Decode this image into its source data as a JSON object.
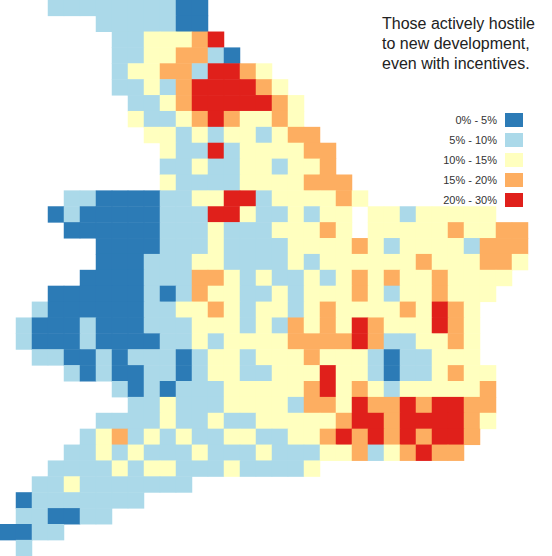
{
  "chart_data": {
    "type": "map",
    "title": "Those actively hostile\nto new development,\neven with incentives.",
    "tick_labels": false,
    "color_classes": [
      {
        "label": "0% - 5%",
        "min": 0,
        "max": 5,
        "color": "#2c7bb6"
      },
      {
        "label": "5% - 10%",
        "min": 5,
        "max": 10,
        "color": "#abd9e9"
      },
      {
        "label": "10% - 15%",
        "min": 10,
        "max": 15,
        "color": "#ffffbf"
      },
      {
        "label": "15% - 20%",
        "min": 15,
        "max": 20,
        "color": "#fdae61"
      },
      {
        "label": "20% - 30%",
        "min": 20,
        "max": 30,
        "color": "#e0201b"
      }
    ],
    "cells": [
      [
        null,
        null,
        null,
        8,
        8,
        8,
        8,
        8,
        8,
        8,
        8,
        3,
        3,
        null,
        null,
        null,
        null,
        null,
        null,
        null,
        null,
        null,
        null,
        null,
        null,
        null,
        null,
        null,
        null,
        null,
        null,
        null,
        null,
        null
      ],
      [
        null,
        null,
        null,
        null,
        null,
        null,
        8,
        8,
        8,
        8,
        8,
        3,
        3,
        null,
        null,
        null,
        null,
        null,
        null,
        null,
        null,
        null,
        null,
        null,
        null,
        null,
        null,
        null,
        null,
        null,
        null,
        null,
        null,
        null
      ],
      [
        null,
        null,
        null,
        null,
        null,
        null,
        null,
        8,
        8,
        13,
        13,
        13,
        18,
        25,
        null,
        null,
        null,
        null,
        null,
        null,
        null,
        null,
        null,
        null,
        null,
        null,
        null,
        null,
        null,
        null,
        null,
        null,
        null,
        null
      ],
      [
        null,
        null,
        null,
        null,
        null,
        null,
        null,
        8,
        8,
        13,
        13,
        18,
        18,
        8,
        3,
        null,
        null,
        null,
        null,
        null,
        null,
        null,
        null,
        null,
        null,
        null,
        null,
        null,
        null,
        null,
        null,
        null,
        null,
        null
      ],
      [
        null,
        null,
        null,
        null,
        null,
        null,
        null,
        8,
        13,
        13,
        18,
        18,
        8,
        25,
        25,
        18,
        13,
        null,
        null,
        null,
        null,
        null,
        null,
        null,
        null,
        null,
        null,
        null,
        null,
        null,
        null,
        null,
        null,
        null
      ],
      [
        null,
        null,
        null,
        null,
        null,
        null,
        null,
        8,
        8,
        13,
        8,
        18,
        25,
        25,
        25,
        25,
        18,
        13,
        null,
        null,
        null,
        null,
        null,
        null,
        null,
        null,
        null,
        null,
        null,
        null,
        null,
        null,
        null,
        null
      ],
      [
        null,
        null,
        null,
        null,
        null,
        null,
        null,
        null,
        8,
        8,
        13,
        18,
        25,
        25,
        25,
        25,
        25,
        18,
        13,
        null,
        null,
        null,
        null,
        null,
        null,
        null,
        null,
        null,
        null,
        null,
        null,
        null,
        null,
        null
      ],
      [
        null,
        null,
        null,
        null,
        null,
        null,
        null,
        null,
        13,
        8,
        8,
        13,
        18,
        25,
        18,
        13,
        13,
        18,
        13,
        null,
        null,
        null,
        null,
        null,
        null,
        null,
        null,
        null,
        null,
        null,
        null,
        null,
        null,
        null
      ],
      [
        null,
        null,
        null,
        null,
        null,
        null,
        null,
        null,
        null,
        13,
        13,
        8,
        13,
        8,
        13,
        13,
        8,
        13,
        18,
        18,
        null,
        null,
        null,
        null,
        null,
        null,
        null,
        null,
        null,
        null,
        null,
        null,
        null,
        null
      ],
      [
        null,
        null,
        null,
        null,
        null,
        null,
        null,
        null,
        null,
        null,
        13,
        8,
        8,
        25,
        8,
        13,
        13,
        13,
        13,
        18,
        18,
        null,
        null,
        null,
        null,
        null,
        null,
        null,
        null,
        null,
        null,
        null,
        null,
        null
      ],
      [
        null,
        null,
        null,
        null,
        null,
        null,
        null,
        null,
        null,
        null,
        8,
        8,
        13,
        8,
        8,
        13,
        13,
        8,
        13,
        13,
        18,
        null,
        null,
        null,
        null,
        null,
        null,
        null,
        null,
        null,
        null,
        null,
        null,
        null
      ],
      [
        null,
        null,
        null,
        null,
        null,
        null,
        null,
        null,
        null,
        null,
        13,
        8,
        8,
        8,
        8,
        13,
        13,
        13,
        13,
        18,
        18,
        18,
        null,
        null,
        null,
        null,
        null,
        null,
        null,
        null,
        null,
        null,
        null,
        null
      ],
      [
        null,
        null,
        null,
        null,
        8,
        8,
        3,
        3,
        3,
        3,
        8,
        8,
        13,
        13,
        25,
        25,
        8,
        13,
        13,
        13,
        13,
        18,
        13,
        null,
        null,
        null,
        null,
        null,
        null,
        null,
        null,
        null,
        null,
        null
      ],
      [
        null,
        null,
        null,
        3,
        8,
        3,
        3,
        3,
        3,
        3,
        8,
        8,
        8,
        25,
        25,
        13,
        8,
        8,
        13,
        8,
        13,
        13,
        null,
        13,
        13,
        8,
        13,
        13,
        13,
        13,
        13,
        null,
        null,
        null
      ],
      [
        null,
        null,
        null,
        null,
        3,
        3,
        3,
        3,
        3,
        3,
        8,
        8,
        8,
        13,
        8,
        8,
        8,
        13,
        13,
        13,
        18,
        13,
        null,
        13,
        13,
        13,
        13,
        13,
        18,
        13,
        13,
        18,
        18,
        null
      ],
      [
        null,
        null,
        null,
        null,
        null,
        null,
        3,
        3,
        3,
        3,
        8,
        8,
        8,
        13,
        8,
        8,
        8,
        8,
        13,
        13,
        13,
        13,
        18,
        13,
        8,
        13,
        13,
        13,
        13,
        8,
        18,
        18,
        18,
        null
      ],
      [
        null,
        null,
        null,
        null,
        null,
        null,
        3,
        3,
        3,
        8,
        8,
        8,
        13,
        13,
        8,
        8,
        8,
        8,
        13,
        8,
        13,
        13,
        13,
        13,
        13,
        13,
        18,
        13,
        13,
        13,
        18,
        18,
        13,
        null
      ],
      [
        null,
        null,
        null,
        null,
        null,
        3,
        3,
        3,
        3,
        8,
        8,
        8,
        18,
        18,
        13,
        8,
        13,
        8,
        8,
        13,
        8,
        13,
        18,
        13,
        18,
        13,
        13,
        18,
        13,
        13,
        13,
        13,
        null,
        null
      ],
      [
        null,
        null,
        null,
        3,
        3,
        3,
        3,
        3,
        3,
        8,
        3,
        8,
        18,
        13,
        13,
        8,
        8,
        13,
        8,
        13,
        13,
        13,
        18,
        13,
        8,
        13,
        13,
        18,
        13,
        13,
        13,
        null,
        null,
        null
      ],
      [
        null,
        null,
        8,
        3,
        3,
        3,
        3,
        3,
        3,
        8,
        8,
        13,
        13,
        18,
        13,
        8,
        13,
        13,
        8,
        13,
        18,
        13,
        13,
        13,
        13,
        18,
        13,
        25,
        18,
        13,
        null,
        null,
        null,
        null
      ],
      [
        null,
        8,
        3,
        3,
        3,
        8,
        3,
        3,
        3,
        8,
        8,
        8,
        13,
        13,
        13,
        8,
        13,
        8,
        18,
        13,
        18,
        13,
        25,
        18,
        13,
        13,
        13,
        25,
        18,
        13,
        null,
        null,
        null,
        null
      ],
      [
        null,
        8,
        3,
        3,
        3,
        8,
        3,
        3,
        3,
        3,
        8,
        8,
        13,
        8,
        13,
        13,
        13,
        13,
        18,
        18,
        18,
        18,
        25,
        18,
        8,
        8,
        13,
        13,
        18,
        13,
        null,
        null,
        null,
        null
      ],
      [
        null,
        null,
        8,
        8,
        3,
        3,
        8,
        3,
        8,
        8,
        8,
        3,
        8,
        13,
        13,
        8,
        13,
        13,
        13,
        18,
        13,
        13,
        13,
        8,
        3,
        8,
        8,
        13,
        13,
        13,
        null,
        null,
        null,
        null
      ],
      [
        null,
        null,
        null,
        null,
        8,
        3,
        8,
        3,
        3,
        8,
        8,
        3,
        8,
        13,
        13,
        8,
        8,
        13,
        13,
        13,
        25,
        13,
        13,
        8,
        3,
        8,
        8,
        13,
        18,
        13,
        13,
        null,
        null,
        null
      ],
      [
        null,
        null,
        null,
        null,
        null,
        null,
        null,
        8,
        3,
        8,
        3,
        8,
        8,
        8,
        13,
        13,
        13,
        13,
        13,
        18,
        25,
        13,
        18,
        13,
        8,
        13,
        13,
        13,
        13,
        13,
        18,
        null,
        null,
        null
      ],
      [
        null,
        null,
        null,
        null,
        null,
        null,
        null,
        null,
        8,
        8,
        13,
        8,
        8,
        8,
        13,
        13,
        13,
        13,
        8,
        18,
        18,
        13,
        25,
        18,
        18,
        25,
        18,
        25,
        25,
        18,
        18,
        null,
        null,
        null
      ],
      [
        null,
        null,
        null,
        null,
        null,
        null,
        8,
        8,
        8,
        8,
        13,
        8,
        8,
        13,
        8,
        8,
        13,
        13,
        13,
        13,
        13,
        18,
        25,
        25,
        18,
        25,
        25,
        25,
        25,
        18,
        13,
        null,
        null,
        null
      ],
      [
        null,
        null,
        null,
        null,
        null,
        8,
        13,
        18,
        8,
        13,
        8,
        13,
        8,
        8,
        13,
        13,
        8,
        8,
        13,
        13,
        18,
        25,
        18,
        25,
        18,
        25,
        18,
        25,
        25,
        18,
        null,
        null,
        null,
        null
      ],
      [
        null,
        null,
        null,
        null,
        8,
        8,
        13,
        8,
        13,
        8,
        8,
        8,
        13,
        8,
        8,
        8,
        13,
        8,
        8,
        8,
        13,
        13,
        18,
        8,
        13,
        18,
        25,
        18,
        18,
        null,
        null,
        null,
        null,
        null
      ],
      [
        null,
        null,
        null,
        8,
        8,
        8,
        8,
        13,
        8,
        13,
        13,
        8,
        8,
        8,
        13,
        8,
        8,
        8,
        8,
        13,
        null,
        null,
        null,
        null,
        null,
        null,
        null,
        null,
        null,
        null,
        null,
        null,
        null,
        null
      ],
      [
        null,
        null,
        8,
        8,
        13,
        8,
        8,
        8,
        8,
        8,
        8,
        8,
        null,
        null,
        null,
        null,
        null,
        null,
        null,
        null,
        null,
        null,
        null,
        null,
        null,
        null,
        null,
        null,
        null,
        null,
        null,
        null,
        null,
        null
      ],
      [
        null,
        3,
        8,
        8,
        8,
        8,
        8,
        8,
        8,
        null,
        null,
        null,
        null,
        null,
        null,
        null,
        null,
        null,
        null,
        null,
        null,
        null,
        null,
        null,
        null,
        null,
        null,
        null,
        null,
        null,
        null,
        null,
        null,
        null
      ],
      [
        null,
        8,
        8,
        3,
        3,
        8,
        8,
        null,
        null,
        null,
        null,
        null,
        null,
        null,
        null,
        null,
        null,
        null,
        null,
        null,
        null,
        null,
        null,
        null,
        null,
        null,
        null,
        null,
        null,
        null,
        null,
        null,
        null,
        null
      ],
      [
        3,
        3,
        8,
        8,
        null,
        null,
        null,
        null,
        null,
        null,
        null,
        null,
        null,
        null,
        null,
        null,
        null,
        null,
        null,
        null,
        null,
        null,
        null,
        null,
        null,
        null,
        null,
        null,
        null,
        null,
        null,
        null,
        null,
        null
      ],
      [
        null,
        8,
        null,
        null,
        null,
        null,
        null,
        null,
        null,
        null,
        null,
        null,
        null,
        null,
        null,
        null,
        null,
        null,
        null,
        null,
        null,
        null,
        null,
        null,
        null,
        null,
        null,
        null,
        null,
        null,
        null,
        null,
        null,
        null
      ]
    ]
  }
}
